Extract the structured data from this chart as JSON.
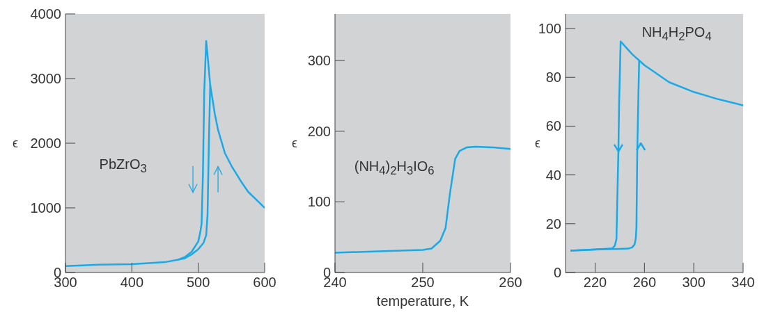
{
  "chart_data": [
    {
      "type": "line",
      "ylabel": "ϵ",
      "xlim": [
        300,
        600
      ],
      "xticks": [
        300,
        400,
        500,
        600
      ],
      "ylim": [
        0,
        4000
      ],
      "yticks": [
        0,
        1000,
        2000,
        3000,
        4000
      ],
      "annotations": [
        "PbZrO$_{3}$"
      ],
      "series": [
        {
          "color": "#1aa8e6",
          "x": [
            300,
            350,
            400,
            450,
            470,
            480,
            490,
            500,
            503,
            505,
            507,
            509,
            512,
            515,
            518,
            525,
            530,
            540,
            550,
            565,
            575,
            590,
            600
          ],
          "values": [
            100,
            120,
            130,
            160,
            200,
            240,
            320,
            480,
            620,
            750,
            1500,
            2800,
            3580,
            3250,
            2900,
            2450,
            2200,
            1850,
            1650,
            1400,
            1250,
            1100,
            1000
          ]
        },
        {
          "color": "#1aa8e6",
          "x": [
            470,
            480,
            490,
            500,
            508,
            512,
            514,
            516,
            518
          ],
          "values": [
            200,
            220,
            280,
            360,
            460,
            580,
            900,
            2000,
            2900
          ]
        }
      ]
    },
    {
      "type": "line",
      "ylabel": "ϵ",
      "xlabel": "temperature, K",
      "xlim": [
        240,
        260
      ],
      "xticks": [
        240,
        250,
        260
      ],
      "ylim": [
        0,
        366
      ],
      "yticks": [
        0,
        100,
        200,
        300
      ],
      "annotations": [
        "(NH$_{4}$)$_{2}$H$_{3}$IO$_{6}$"
      ],
      "series": [
        {
          "color": "#1aa8e6",
          "x": [
            240,
            245,
            250,
            251,
            252,
            252.6,
            253.1,
            253.7,
            254.2,
            255,
            256,
            258,
            260
          ],
          "values": [
            28,
            30,
            32,
            34,
            45,
            63,
            112,
            161,
            172,
            177,
            178,
            177,
            175
          ]
        }
      ]
    },
    {
      "type": "line",
      "ylabel": "ϵ",
      "xlim": [
        196,
        340
      ],
      "xticks": [
        220,
        260,
        300,
        340
      ],
      "ylim": [
        0,
        106
      ],
      "yticks": [
        0,
        20,
        40,
        60,
        80,
        100
      ],
      "annotations": [
        "NH$_{4}$H$_{2}$PO$_{4}$"
      ],
      "series": [
        {
          "color": "#1aa8e6",
          "x": [
            340,
            320,
            300,
            280,
            260,
            250,
            240.7,
            239.5,
            238.9,
            238,
            237.3,
            236,
            234,
            228,
            220,
            210,
            200
          ],
          "values": [
            68.5,
            71,
            74,
            78,
            85,
            89.5,
            94.7,
            70,
            50.4,
            30,
            13.7,
            11,
            9.9,
            9.7,
            9.5,
            9.2,
            9
          ]
        },
        {
          "color": "#1aa8e6",
          "x": [
            200,
            220,
            240,
            247,
            250,
            252,
            253,
            253.5,
            254.2,
            255,
            255.7
          ],
          "values": [
            9,
            9.4,
            9.7,
            9.8,
            10.3,
            11.5,
            14,
            18.4,
            50.4,
            70,
            86.7
          ]
        }
      ]
    }
  ]
}
